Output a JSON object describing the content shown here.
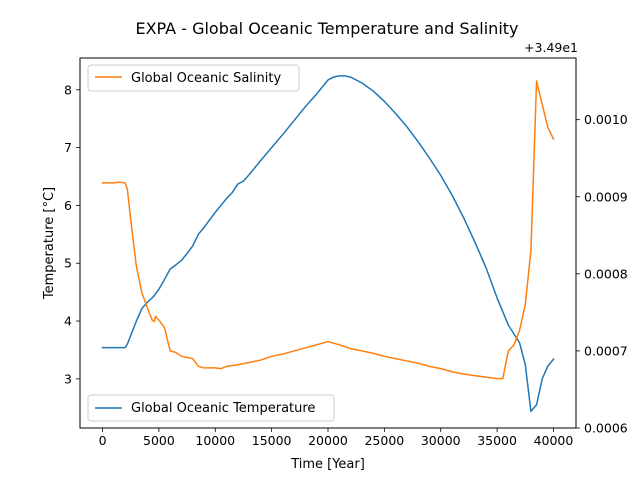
{
  "chart_data": {
    "type": "line",
    "title": "EXPA - Global Oceanic Temperature and Salinity",
    "xlabel": "Time [Year]",
    "ylabel": "Temperature [°C]",
    "y2label": "",
    "y2_offset_text": "+3.49e1",
    "xlim": [
      -2000,
      42000
    ],
    "ylim": [
      2.15,
      8.55
    ],
    "y2lim": [
      0.0006,
      0.00108
    ],
    "x_ticks": [
      0,
      5000,
      10000,
      15000,
      20000,
      25000,
      30000,
      35000,
      40000
    ],
    "x_tick_labels": [
      "0",
      "5000",
      "10000",
      "15000",
      "20000",
      "25000",
      "30000",
      "35000",
      "40000"
    ],
    "y_ticks": [
      3,
      4,
      5,
      6,
      7,
      8
    ],
    "y_tick_labels": [
      "3",
      "4",
      "5",
      "6",
      "7",
      "8"
    ],
    "y2_ticks": [
      0.0006,
      0.0007,
      0.0008,
      0.0009,
      0.001
    ],
    "y2_tick_labels": [
      "0.0006",
      "0.0007",
      "0.0008",
      "0.0009",
      "0.0010"
    ],
    "grid": false,
    "series": [
      {
        "name": "Global Oceanic Temperature",
        "axis": "left",
        "color": "#1f77b4",
        "legend_position": "lower-left",
        "points": [
          [
            0,
            3.54
          ],
          [
            1000,
            3.54
          ],
          [
            2000,
            3.54
          ],
          [
            2200,
            3.6
          ],
          [
            2600,
            3.8
          ],
          [
            3000,
            4.0
          ],
          [
            3500,
            4.22
          ],
          [
            4000,
            4.33
          ],
          [
            4500,
            4.42
          ],
          [
            5000,
            4.55
          ],
          [
            5500,
            4.72
          ],
          [
            6000,
            4.9
          ],
          [
            6500,
            4.97
          ],
          [
            7000,
            5.05
          ],
          [
            7500,
            5.17
          ],
          [
            8000,
            5.3
          ],
          [
            8500,
            5.5
          ],
          [
            9000,
            5.62
          ],
          [
            9500,
            5.75
          ],
          [
            10000,
            5.88
          ],
          [
            10500,
            6.0
          ],
          [
            11000,
            6.12
          ],
          [
            11500,
            6.22
          ],
          [
            12000,
            6.37
          ],
          [
            12500,
            6.42
          ],
          [
            13000,
            6.53
          ],
          [
            14000,
            6.77
          ],
          [
            15000,
            7.0
          ],
          [
            16000,
            7.23
          ],
          [
            17000,
            7.47
          ],
          [
            18000,
            7.71
          ],
          [
            19000,
            7.93
          ],
          [
            20000,
            8.17
          ],
          [
            20500,
            8.22
          ],
          [
            21000,
            8.24
          ],
          [
            21500,
            8.24
          ],
          [
            22000,
            8.22
          ],
          [
            23000,
            8.12
          ],
          [
            24000,
            7.98
          ],
          [
            25000,
            7.8
          ],
          [
            26000,
            7.59
          ],
          [
            27000,
            7.36
          ],
          [
            28000,
            7.1
          ],
          [
            29000,
            6.82
          ],
          [
            30000,
            6.52
          ],
          [
            31000,
            6.18
          ],
          [
            32000,
            5.8
          ],
          [
            33000,
            5.38
          ],
          [
            34000,
            4.93
          ],
          [
            35000,
            4.4
          ],
          [
            36000,
            3.93
          ],
          [
            37000,
            3.62
          ],
          [
            37500,
            3.25
          ],
          [
            38000,
            2.44
          ],
          [
            38500,
            2.55
          ],
          [
            39000,
            3.0
          ],
          [
            39500,
            3.22
          ],
          [
            40000,
            3.34
          ]
        ]
      },
      {
        "name": "Global Oceanic Salinity",
        "axis": "right",
        "color": "#ff7f0e",
        "legend_position": "upper-left",
        "points": [
          [
            0,
            0.000918
          ],
          [
            500,
            0.000918
          ],
          [
            1000,
            0.000918
          ],
          [
            1500,
            0.000919
          ],
          [
            2000,
            0.000918
          ],
          [
            2200,
            0.00091
          ],
          [
            2500,
            0.00087
          ],
          [
            3000,
            0.00081
          ],
          [
            3500,
            0.000775
          ],
          [
            4000,
            0.000755
          ],
          [
            4400,
            0.00074
          ],
          [
            4600,
            0.000738
          ],
          [
            4700,
            0.000745
          ],
          [
            5000,
            0.00074
          ],
          [
            5500,
            0.00073
          ],
          [
            6000,
            0.0007
          ],
          [
            6500,
            0.000698
          ],
          [
            7000,
            0.000693
          ],
          [
            8000,
            0.00069
          ],
          [
            8500,
            0.00068
          ],
          [
            9000,
            0.000678
          ],
          [
            10000,
            0.000678
          ],
          [
            10500,
            0.000677
          ],
          [
            11000,
            0.00068
          ],
          [
            12000,
            0.000682
          ],
          [
            13000,
            0.000685
          ],
          [
            14000,
            0.000688
          ],
          [
            15000,
            0.000693
          ],
          [
            16000,
            0.000696
          ],
          [
            17000,
            0.0007
          ],
          [
            18000,
            0.000704
          ],
          [
            19000,
            0.000708
          ],
          [
            20000,
            0.000712
          ],
          [
            20500,
            0.00071
          ],
          [
            21000,
            0.000708
          ],
          [
            22000,
            0.000703
          ],
          [
            23000,
            0.0007
          ],
          [
            24000,
            0.000697
          ],
          [
            25000,
            0.000693
          ],
          [
            26000,
            0.00069
          ],
          [
            27000,
            0.000687
          ],
          [
            28000,
            0.000684
          ],
          [
            29000,
            0.00068
          ],
          [
            30000,
            0.000677
          ],
          [
            31000,
            0.000673
          ],
          [
            32000,
            0.00067
          ],
          [
            33000,
            0.000668
          ],
          [
            34000,
            0.000666
          ],
          [
            35000,
            0.000664
          ],
          [
            35500,
            0.000664
          ],
          [
            36000,
            0.0007
          ],
          [
            36500,
            0.000708
          ],
          [
            37000,
            0.000727
          ],
          [
            37500,
            0.00076
          ],
          [
            38000,
            0.00083
          ],
          [
            38500,
            0.00105
          ],
          [
            39000,
            0.00102
          ],
          [
            39500,
            0.00099
          ],
          [
            40000,
            0.000975
          ]
        ]
      }
    ]
  }
}
